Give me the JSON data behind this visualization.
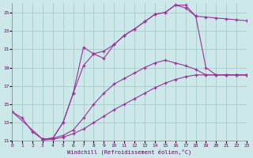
{
  "xlabel": "Windchill (Refroidissement éolien,°C)",
  "background_color": "#cce8e8",
  "grid_color": "#aacccc",
  "line_color": "#993399",
  "xlim": [
    0,
    23
  ],
  "ylim": [
    11,
    26
  ],
  "yticks": [
    11,
    13,
    15,
    17,
    19,
    21,
    23,
    25
  ],
  "xticks": [
    0,
    1,
    2,
    3,
    4,
    5,
    6,
    7,
    8,
    9,
    10,
    11,
    12,
    13,
    14,
    15,
    16,
    17,
    18,
    19,
    20,
    21,
    22,
    23
  ],
  "lines": [
    {
      "x": [
        0,
        1,
        2,
        3,
        4,
        5,
        6,
        7,
        8,
        9,
        10,
        11,
        12,
        13,
        14,
        15,
        16,
        17,
        18,
        19,
        20,
        21,
        22,
        23
      ],
      "y": [
        14.2,
        13.5,
        12.0,
        11.2,
        11.3,
        13.0,
        16.2,
        21.2,
        20.5,
        20.0,
        21.5,
        22.5,
        23.2,
        24.0,
        24.8,
        25.0,
        25.8,
        25.8,
        24.6,
        24.5,
        24.4,
        24.3,
        24.2,
        24.1
      ]
    },
    {
      "x": [
        0,
        3,
        4,
        5,
        6,
        7,
        8,
        9,
        10,
        11,
        12,
        13,
        14,
        15,
        16,
        17,
        18,
        19,
        20,
        21,
        22,
        23
      ],
      "y": [
        14.2,
        11.2,
        11.3,
        13.0,
        16.2,
        19.2,
        20.5,
        20.8,
        21.5,
        22.5,
        23.2,
        24.0,
        24.8,
        25.0,
        25.8,
        25.5,
        24.6,
        19.0,
        18.2,
        18.2,
        18.2,
        18.2
      ]
    },
    {
      "x": [
        3,
        4,
        5,
        6,
        7,
        8,
        9,
        10,
        11,
        12,
        13,
        14,
        15,
        16,
        17,
        18,
        19,
        20,
        21,
        22,
        23
      ],
      "y": [
        11.2,
        11.3,
        11.6,
        12.2,
        13.5,
        15.0,
        16.2,
        17.2,
        17.8,
        18.4,
        19.0,
        19.5,
        19.8,
        19.5,
        19.2,
        18.8,
        18.2,
        18.2,
        18.2,
        18.2,
        18.2
      ]
    },
    {
      "x": [
        3,
        4,
        5,
        6,
        7,
        8,
        9,
        10,
        11,
        12,
        13,
        14,
        15,
        16,
        17,
        18,
        19,
        20,
        21,
        22,
        23
      ],
      "y": [
        11.1,
        11.2,
        11.4,
        11.8,
        12.3,
        13.0,
        13.7,
        14.4,
        15.0,
        15.6,
        16.2,
        16.8,
        17.3,
        17.7,
        18.0,
        18.2,
        18.2,
        18.2,
        18.2,
        18.2,
        18.2
      ]
    }
  ]
}
